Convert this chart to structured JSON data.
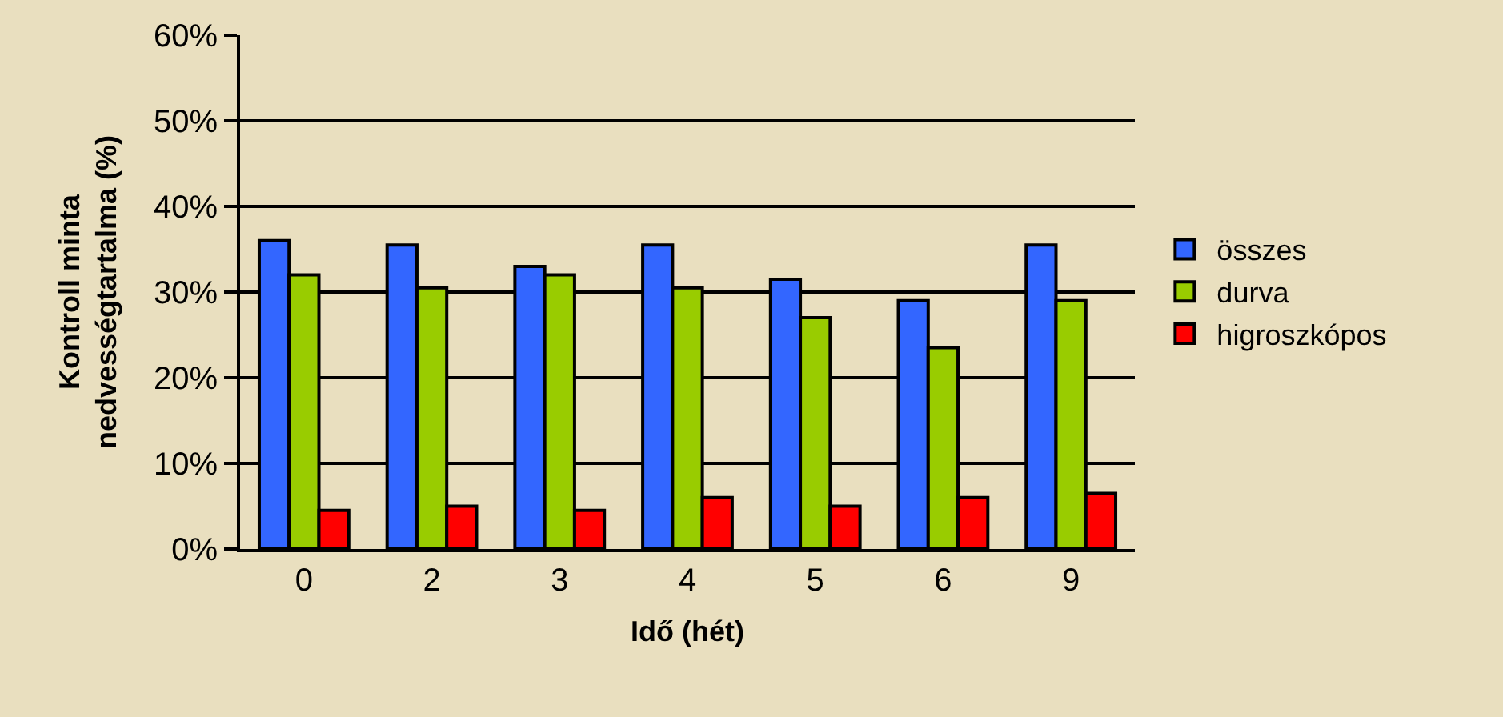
{
  "chart_data": {
    "type": "bar",
    "xlabel": "Idő (hét)",
    "ylabel": "Kontroll minta\nnedvességtartalma (%)",
    "categories": [
      "0",
      "2",
      "3",
      "4",
      "5",
      "6",
      "9"
    ],
    "series": [
      {
        "name": "összes",
        "color": "#3366ff",
        "values": [
          36,
          35.5,
          33,
          35.5,
          31.5,
          29,
          35.5
        ]
      },
      {
        "name": "durva",
        "color": "#99cc00",
        "values": [
          32,
          30.5,
          32,
          30.5,
          27,
          23.5,
          29
        ]
      },
      {
        "name": "higroszkópos",
        "color": "#ff0000",
        "values": [
          4.5,
          5,
          4.5,
          6,
          5,
          6,
          6.5
        ]
      }
    ],
    "ylim": [
      0,
      60
    ],
    "yticks": [
      {
        "value": 0,
        "label": "0%"
      },
      {
        "value": 10,
        "label": "10%"
      },
      {
        "value": 20,
        "label": "20%"
      },
      {
        "value": 30,
        "label": "30%"
      },
      {
        "value": 40,
        "label": "40%"
      },
      {
        "value": 50,
        "label": "50%"
      },
      {
        "value": 60,
        "label": "60%"
      }
    ],
    "grid": "y",
    "legend": "right"
  }
}
